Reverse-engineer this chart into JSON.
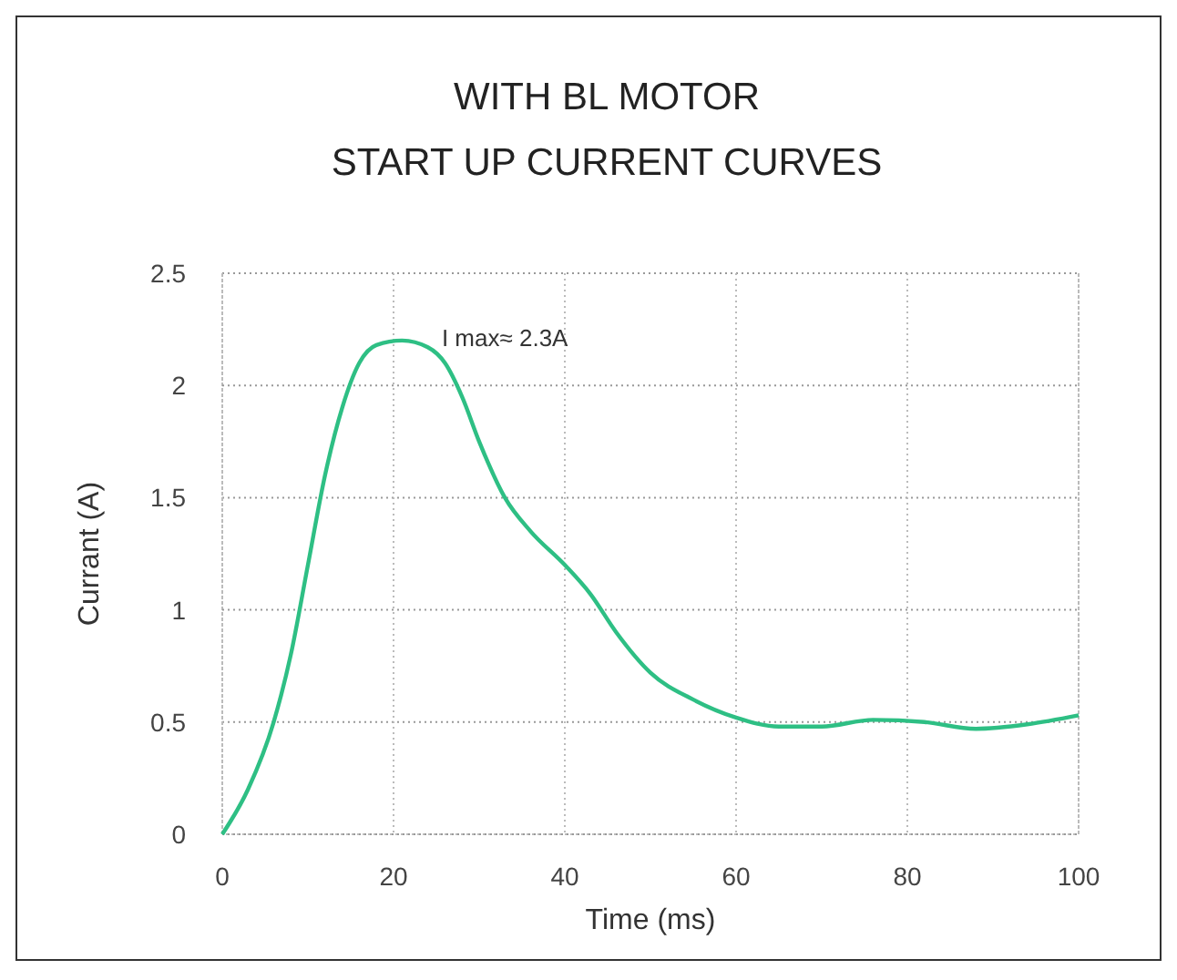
{
  "chart_data": {
    "type": "line",
    "title": "WITH BL MOTOR\nSTART UP CURRENT CURVES",
    "xlabel": "Time  (ms)",
    "ylabel": "Currant  (A)",
    "xlim": [
      0,
      100
    ],
    "xticks": [
      0,
      20,
      40,
      60,
      80,
      100
    ],
    "ylim": [
      0,
      2.5
    ],
    "yticks": [
      0,
      0.5,
      1,
      1.5,
      2,
      2.5
    ],
    "grid": true,
    "marker": "none",
    "line_style": "solid",
    "annotations": [
      "I max≈ 2.3A"
    ],
    "series": [
      {
        "color": "#2ebf84",
        "x": [
          0,
          3,
          6,
          8,
          10,
          12,
          14,
          16,
          18,
          21,
          24,
          26,
          28,
          30,
          33,
          36,
          40,
          43,
          46,
          50,
          55,
          60,
          65,
          70,
          76,
          82,
          88,
          94,
          100
        ],
        "values": [
          0,
          0.2,
          0.5,
          0.8,
          1.2,
          1.6,
          1.9,
          2.1,
          2.18,
          2.2,
          2.17,
          2.1,
          1.95,
          1.75,
          1.5,
          1.35,
          1.2,
          1.07,
          0.9,
          0.72,
          0.6,
          0.52,
          0.48,
          0.48,
          0.51,
          0.5,
          0.47,
          0.49,
          0.53
        ]
      }
    ]
  }
}
